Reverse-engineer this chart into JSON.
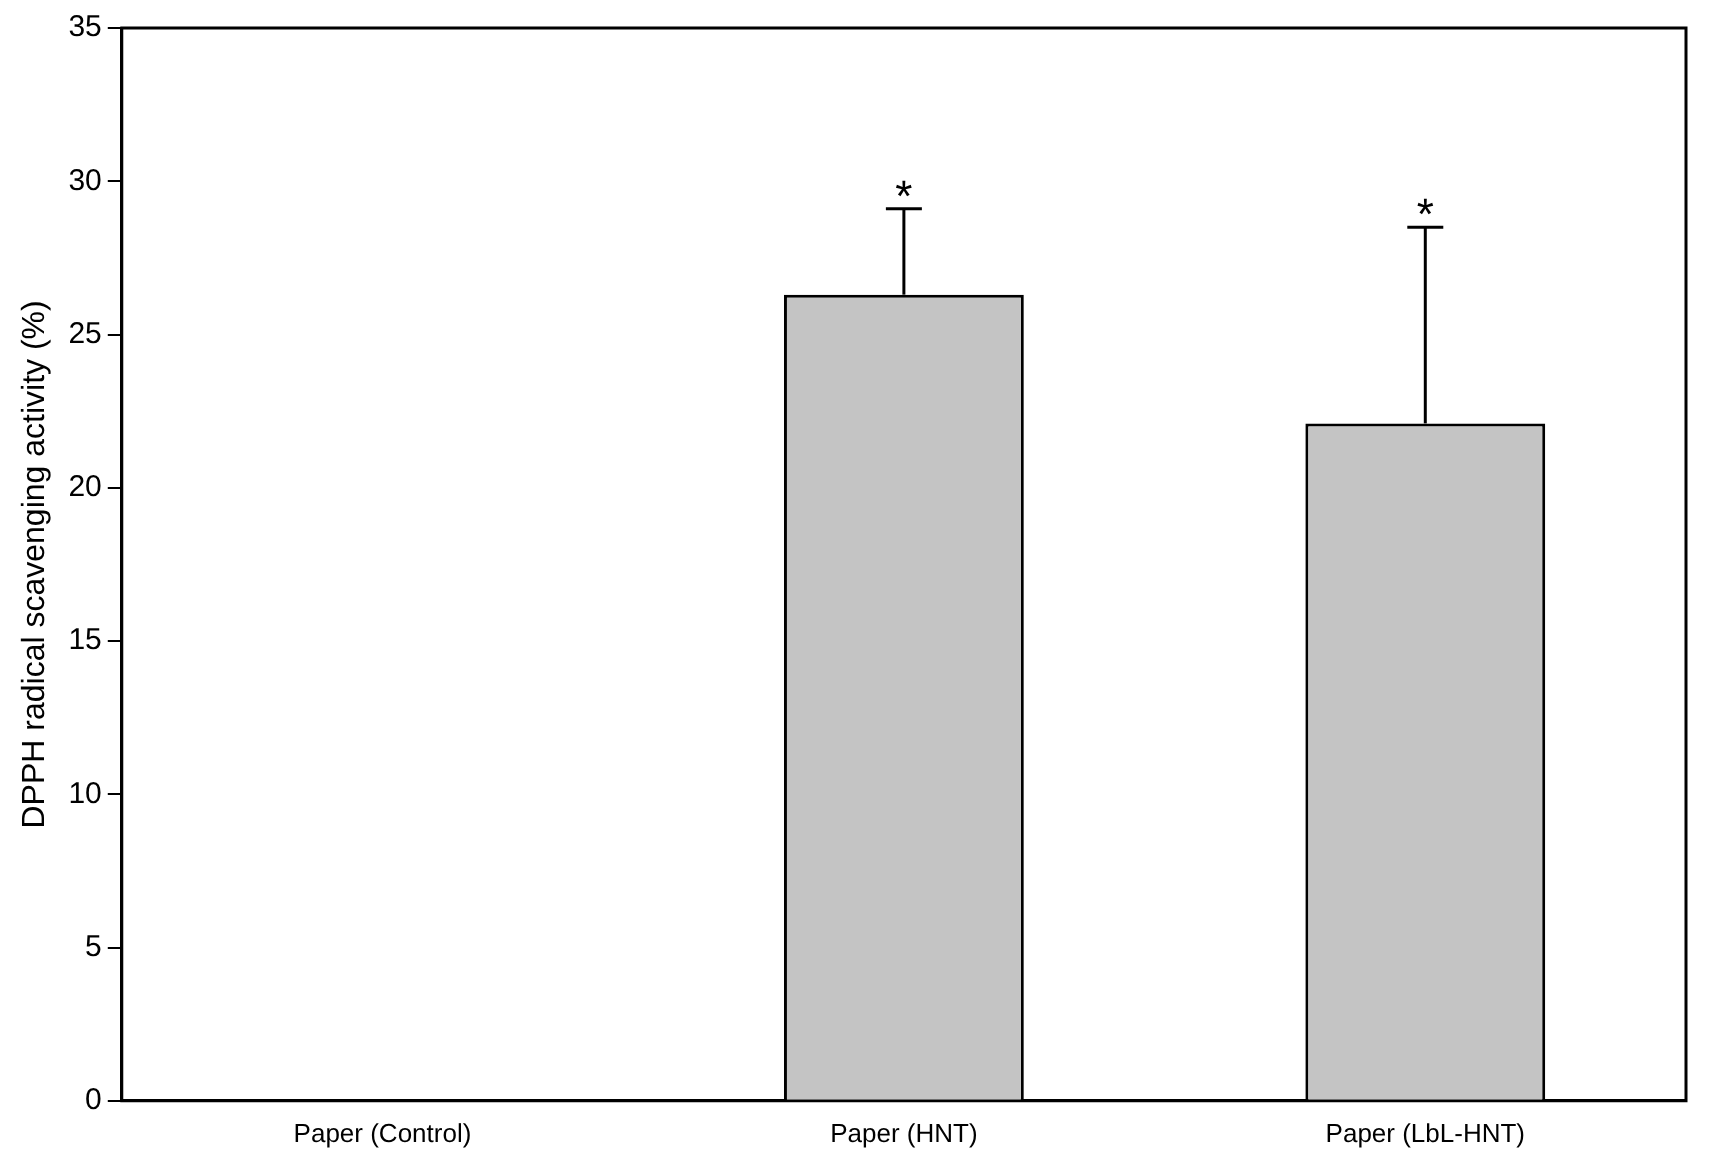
{
  "chart_data": {
    "type": "bar",
    "ylabel": "DPPH radical scavenging activity (%)",
    "categories": [
      "Paper (Control)",
      "Paper (HNT)",
      "Paper (LbL-HNT)"
    ],
    "values": [
      0,
      26.3,
      22.1
    ],
    "errors": [
      null,
      [
        26.3,
        29.1
      ],
      [
        22.1,
        28.5
      ]
    ],
    "color": "#c4c4c4",
    "ylim": [
      0,
      35
    ],
    "yticks": [
      0,
      5,
      10,
      15,
      20,
      25,
      30,
      35
    ],
    "grid": false,
    "annotations": [
      {
        "text": "*",
        "x": "Paper (HNT)",
        "y": 29.1
      },
      {
        "text": "*",
        "x": "Paper (LbL-HNT)",
        "y": 28.5
      }
    ]
  }
}
